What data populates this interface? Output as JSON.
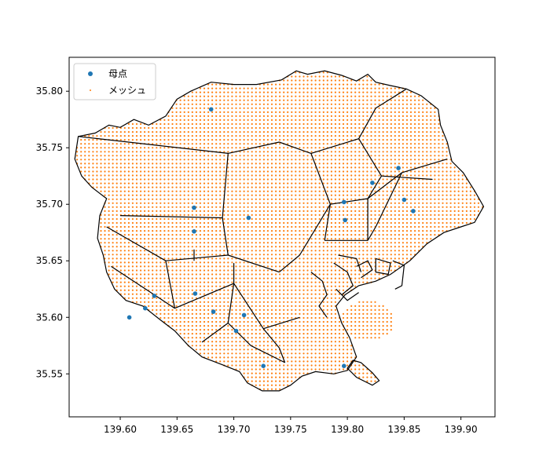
{
  "chart_data": {
    "type": "scatter",
    "title": "",
    "xlabel": "",
    "ylabel": "",
    "xlim": [
      139.555,
      139.93
    ],
    "ylim": [
      35.512,
      35.83
    ],
    "x_ticks": [
      139.6,
      139.65,
      139.7,
      139.75,
      139.8,
      139.85,
      139.9
    ],
    "x_tick_labels": [
      "139.60",
      "139.65",
      "139.70",
      "139.75",
      "139.80",
      "139.85",
      "139.90"
    ],
    "y_ticks": [
      35.55,
      35.6,
      35.65,
      35.7,
      35.75,
      35.8
    ],
    "y_tick_labels": [
      "35.55",
      "35.60",
      "35.65",
      "35.70",
      "35.75",
      "35.80"
    ],
    "grid": false,
    "legend_position": "top-left",
    "colors": {
      "seed": "#1f77b4",
      "mesh": "#ff7f0e",
      "boundary": "#000000",
      "axis": "#000000"
    },
    "series": [
      {
        "name": "母点",
        "marker": "circle",
        "points": [
          [
            139.608,
            35.6
          ],
          [
            139.622,
            35.608
          ],
          [
            139.63,
            35.619
          ],
          [
            139.666,
            35.621
          ],
          [
            139.665,
            35.697
          ],
          [
            139.665,
            35.676
          ],
          [
            139.68,
            35.784
          ],
          [
            139.713,
            35.688
          ],
          [
            139.709,
            35.602
          ],
          [
            139.702,
            35.588
          ],
          [
            139.682,
            35.605
          ],
          [
            139.726,
            35.557
          ],
          [
            139.797,
            35.702
          ],
          [
            139.798,
            35.686
          ],
          [
            139.822,
            35.719
          ],
          [
            139.845,
            35.732
          ],
          [
            139.85,
            35.704
          ],
          [
            139.858,
            35.694
          ],
          [
            139.797,
            35.557
          ]
        ]
      },
      {
        "name": "メッシュ",
        "marker": "dot",
        "spacing": 0.0035
      }
    ],
    "boundary": [
      [
        139.563,
        35.76
      ],
      [
        139.578,
        35.763
      ],
      [
        139.59,
        35.77
      ],
      [
        139.6,
        35.768
      ],
      [
        139.612,
        35.775
      ],
      [
        139.625,
        35.77
      ],
      [
        139.64,
        35.778
      ],
      [
        139.65,
        35.793
      ],
      [
        139.662,
        35.8
      ],
      [
        139.68,
        35.808
      ],
      [
        139.7,
        35.806
      ],
      [
        139.72,
        35.806
      ],
      [
        139.742,
        35.81
      ],
      [
        139.755,
        35.818
      ],
      [
        139.765,
        35.815
      ],
      [
        139.78,
        35.818
      ],
      [
        139.795,
        35.814
      ],
      [
        139.808,
        35.809
      ],
      [
        139.818,
        35.815
      ],
      [
        139.825,
        35.808
      ],
      [
        139.838,
        35.805
      ],
      [
        139.852,
        35.802
      ],
      [
        139.865,
        35.796
      ],
      [
        139.88,
        35.784
      ],
      [
        139.882,
        35.77
      ],
      [
        139.888,
        35.755
      ],
      [
        139.892,
        35.738
      ],
      [
        139.902,
        35.728
      ],
      [
        139.912,
        35.712
      ],
      [
        139.92,
        35.698
      ],
      [
        139.912,
        35.684
      ],
      [
        139.9,
        35.68
      ],
      [
        139.885,
        35.675
      ],
      [
        139.87,
        35.665
      ],
      [
        139.855,
        35.65
      ],
      [
        139.838,
        35.638
      ],
      [
        139.825,
        35.632
      ],
      [
        139.81,
        35.628
      ],
      [
        139.798,
        35.62
      ],
      [
        139.79,
        35.61
      ],
      [
        139.795,
        35.595
      ],
      [
        139.802,
        35.582
      ],
      [
        139.808,
        35.565
      ],
      [
        139.8,
        35.553
      ],
      [
        139.788,
        35.55
      ],
      [
        139.772,
        35.552
      ],
      [
        139.76,
        35.548
      ],
      [
        139.75,
        35.54
      ],
      [
        139.74,
        35.535
      ],
      [
        139.725,
        35.535
      ],
      [
        139.712,
        35.542
      ],
      [
        139.705,
        35.552
      ],
      [
        139.69,
        35.558
      ],
      [
        139.672,
        35.565
      ],
      [
        139.66,
        35.575
      ],
      [
        139.648,
        35.588
      ],
      [
        139.635,
        35.598
      ],
      [
        139.62,
        35.61
      ],
      [
        139.605,
        35.615
      ],
      [
        139.595,
        35.625
      ],
      [
        139.588,
        35.64
      ],
      [
        139.585,
        35.655
      ],
      [
        139.58,
        35.67
      ],
      [
        139.582,
        35.69
      ],
      [
        139.588,
        35.705
      ],
      [
        139.575,
        35.715
      ],
      [
        139.566,
        35.725
      ],
      [
        139.56,
        35.74
      ],
      [
        139.563,
        35.76
      ]
    ],
    "island_boundary": [
      [
        139.812,
        35.56
      ],
      [
        139.822,
        35.551
      ],
      [
        139.828,
        35.544
      ],
      [
        139.822,
        35.54
      ],
      [
        139.808,
        35.547
      ],
      [
        139.8,
        35.555
      ],
      [
        139.805,
        35.562
      ],
      [
        139.812,
        35.56
      ]
    ],
    "oval_mesh_region": {
      "center": [
        139.818,
        35.597
      ],
      "radius": [
        0.024,
        0.018
      ]
    },
    "voronoi_edges": [
      [
        [
          139.563,
          35.76
        ],
        [
          139.695,
          35.745
        ]
      ],
      [
        [
          139.695,
          35.745
        ],
        [
          139.74,
          35.755
        ]
      ],
      [
        [
          139.74,
          35.755
        ],
        [
          139.768,
          35.745
        ]
      ],
      [
        [
          139.768,
          35.745
        ],
        [
          139.81,
          35.758
        ]
      ],
      [
        [
          139.81,
          35.758
        ],
        [
          139.825,
          35.785
        ]
      ],
      [
        [
          139.825,
          35.785
        ],
        [
          139.852,
          35.802
        ]
      ],
      [
        [
          139.81,
          35.758
        ],
        [
          139.83,
          35.725
        ]
      ],
      [
        [
          139.83,
          35.725
        ],
        [
          139.875,
          35.722
        ]
      ],
      [
        [
          139.83,
          35.725
        ],
        [
          139.818,
          35.705
        ]
      ],
      [
        [
          139.818,
          35.705
        ],
        [
          139.785,
          35.7
        ]
      ],
      [
        [
          139.785,
          35.7
        ],
        [
          139.768,
          35.745
        ]
      ],
      [
        [
          139.785,
          35.7
        ],
        [
          139.78,
          35.668
        ]
      ],
      [
        [
          139.78,
          35.668
        ],
        [
          139.818,
          35.668
        ]
      ],
      [
        [
          139.818,
          35.668
        ],
        [
          139.818,
          35.705
        ]
      ],
      [
        [
          139.818,
          35.705
        ],
        [
          139.848,
          35.728
        ]
      ],
      [
        [
          139.848,
          35.728
        ],
        [
          139.888,
          35.74
        ]
      ],
      [
        [
          139.848,
          35.728
        ],
        [
          139.825,
          35.68
        ]
      ],
      [
        [
          139.825,
          35.68
        ],
        [
          139.818,
          35.668
        ]
      ],
      [
        [
          139.695,
          35.745
        ],
        [
          139.69,
          35.688
        ]
      ],
      [
        [
          139.69,
          35.688
        ],
        [
          139.695,
          35.655
        ]
      ],
      [
        [
          139.695,
          35.655
        ],
        [
          139.74,
          35.64
        ]
      ],
      [
        [
          139.74,
          35.64
        ],
        [
          139.758,
          35.655
        ]
      ],
      [
        [
          139.758,
          35.655
        ],
        [
          139.785,
          35.7
        ]
      ],
      [
        [
          139.69,
          35.688
        ],
        [
          139.6,
          35.69
        ]
      ],
      [
        [
          139.695,
          35.655
        ],
        [
          139.64,
          35.65
        ]
      ],
      [
        [
          139.64,
          35.65
        ],
        [
          139.588,
          35.68
        ]
      ],
      [
        [
          139.64,
          35.65
        ],
        [
          139.648,
          35.608
        ]
      ],
      [
        [
          139.648,
          35.608
        ],
        [
          139.592,
          35.645
        ]
      ],
      [
        [
          139.648,
          35.608
        ],
        [
          139.7,
          35.63
        ]
      ],
      [
        [
          139.7,
          35.63
        ],
        [
          139.7,
          35.648
        ]
      ],
      [
        [
          139.7,
          35.63
        ],
        [
          139.726,
          35.59
        ]
      ],
      [
        [
          139.726,
          35.59
        ],
        [
          139.758,
          35.6
        ]
      ],
      [
        [
          139.726,
          35.59
        ],
        [
          139.74,
          35.573
        ]
      ],
      [
        [
          139.74,
          35.573
        ],
        [
          139.745,
          35.56
        ]
      ],
      [
        [
          139.7,
          35.63
        ],
        [
          139.695,
          35.595
        ]
      ],
      [
        [
          139.695,
          35.595
        ],
        [
          139.672,
          35.578
        ]
      ],
      [
        [
          139.695,
          35.595
        ],
        [
          139.715,
          35.575
        ]
      ],
      [
        [
          139.715,
          35.575
        ],
        [
          139.745,
          35.56
        ]
      ],
      [
        [
          139.665,
          35.66
        ],
        [
          139.665,
          35.65
        ]
      ]
    ],
    "coastline_details": [
      [
        [
          139.768,
          35.64
        ],
        [
          139.778,
          35.632
        ],
        [
          139.782,
          35.62
        ],
        [
          139.775,
          35.61
        ],
        [
          139.782,
          35.6
        ]
      ],
      [
        [
          139.788,
          35.648
        ],
        [
          139.8,
          35.64
        ],
        [
          139.805,
          35.628
        ],
        [
          139.795,
          35.62
        ]
      ],
      [
        [
          139.792,
          35.655
        ],
        [
          139.808,
          35.652
        ],
        [
          139.812,
          35.64
        ]
      ],
      [
        [
          139.808,
          35.645
        ],
        [
          139.818,
          35.65
        ],
        [
          139.822,
          35.642
        ],
        [
          139.812,
          35.635
        ]
      ],
      [
        [
          139.825,
          35.652
        ],
        [
          139.838,
          35.648
        ],
        [
          139.836,
          35.638
        ],
        [
          139.825,
          35.64
        ],
        [
          139.825,
          35.652
        ]
      ],
      [
        [
          139.84,
          35.65
        ],
        [
          139.85,
          35.646
        ],
        [
          139.848,
          35.628
        ],
        [
          139.842,
          35.625
        ]
      ],
      [
        [
          139.79,
          35.625
        ],
        [
          139.8,
          35.615
        ],
        [
          139.81,
          35.622
        ]
      ]
    ]
  },
  "legend": {
    "seed_label": "母点",
    "mesh_label": "メッシュ"
  }
}
